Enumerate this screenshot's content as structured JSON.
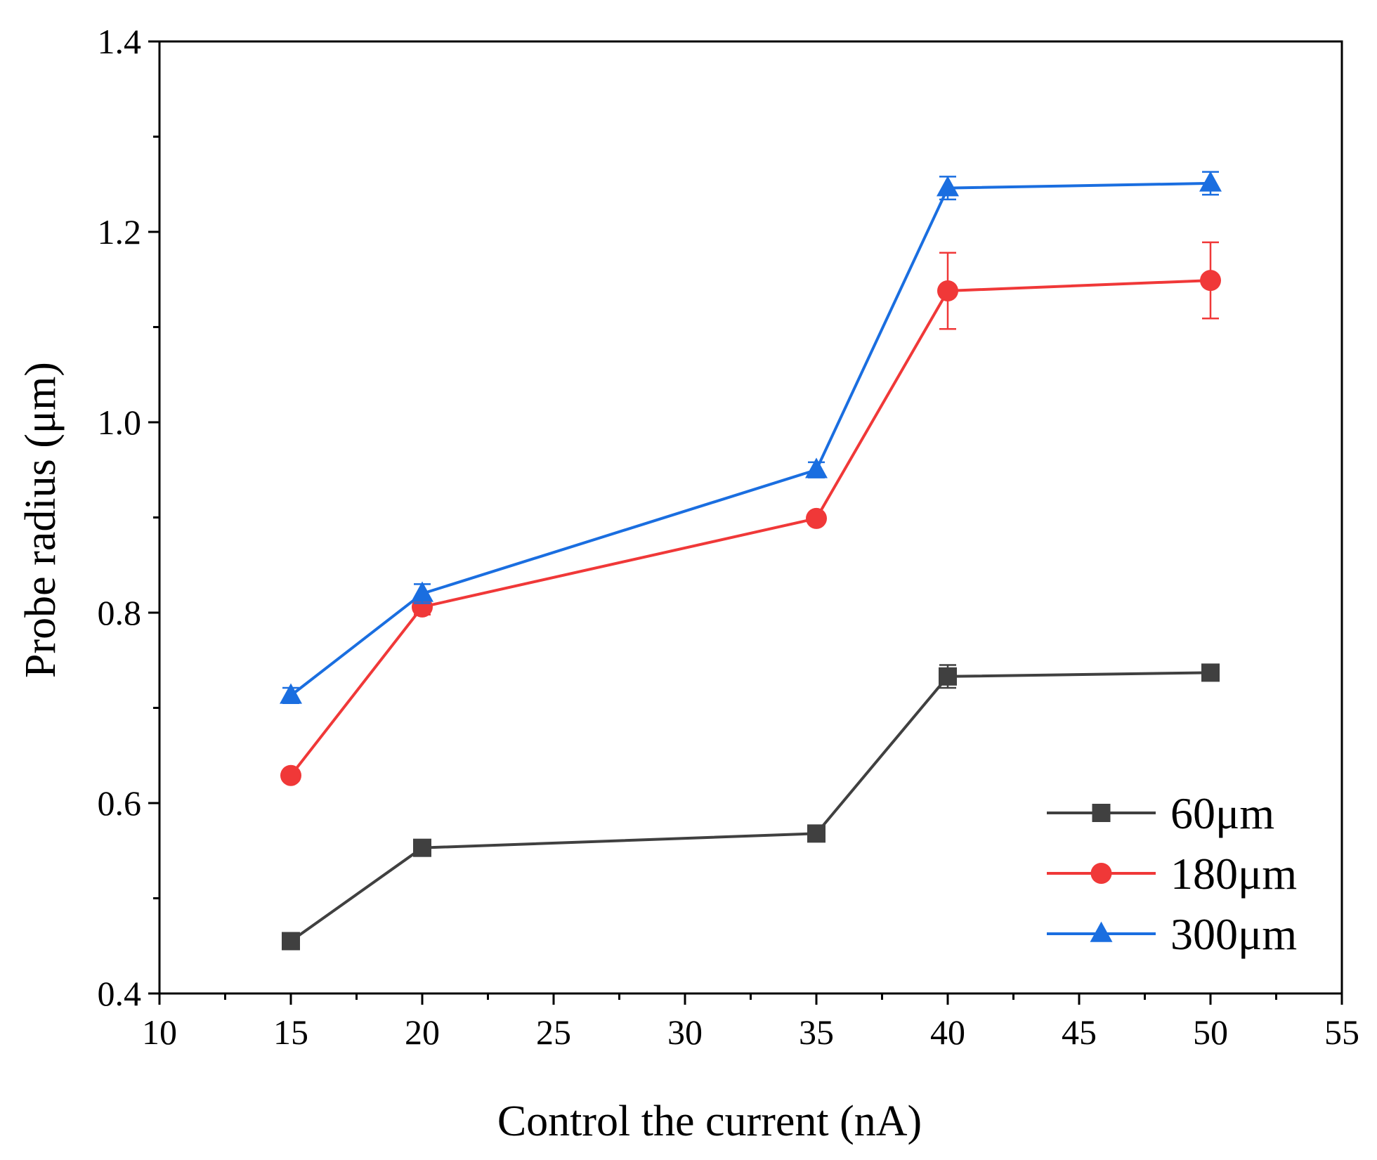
{
  "chart_data": {
    "type": "line",
    "title": "",
    "xlabel": "Control the current (nA)",
    "ylabel": "Probe radius (μm)",
    "xlim": [
      10,
      55
    ],
    "ylim": [
      0.4,
      1.4
    ],
    "x_ticks": [
      10,
      15,
      20,
      25,
      30,
      35,
      40,
      45,
      50,
      55
    ],
    "x_tick_labels": [
      "10",
      "15",
      "20",
      "25",
      "30",
      "35",
      "40",
      "45",
      "50",
      "55"
    ],
    "x_minor_step": 2.5,
    "y_ticks": [
      0.4,
      0.6,
      0.8,
      1.0,
      1.2,
      1.4
    ],
    "y_tick_labels": [
      "0.4",
      "0.6",
      "0.8",
      "1.0",
      "1.2",
      "1.4"
    ],
    "y_minor_step": 0.1,
    "grid": false,
    "legend_position": "bottom-right",
    "x": [
      15,
      20,
      35,
      40,
      50
    ],
    "series": [
      {
        "name": "60μm",
        "color": "#404040",
        "marker": "square",
        "values": [
          0.455,
          0.553,
          0.568,
          0.733,
          0.737
        ],
        "errors": [
          0.005,
          0.005,
          0.005,
          0.012,
          0.006
        ]
      },
      {
        "name": "180μm",
        "color": "#f03838",
        "marker": "circle",
        "values": [
          0.629,
          0.806,
          0.899,
          1.138,
          1.149
        ],
        "errors": [
          0.004,
          0.008,
          0.005,
          0.04,
          0.04
        ]
      },
      {
        "name": "300μm",
        "color": "#1a6ee0",
        "marker": "triangle",
        "values": [
          0.713,
          0.82,
          0.95,
          1.246,
          1.251
        ],
        "errors": [
          0.008,
          0.01,
          0.008,
          0.012,
          0.012
        ]
      }
    ]
  }
}
